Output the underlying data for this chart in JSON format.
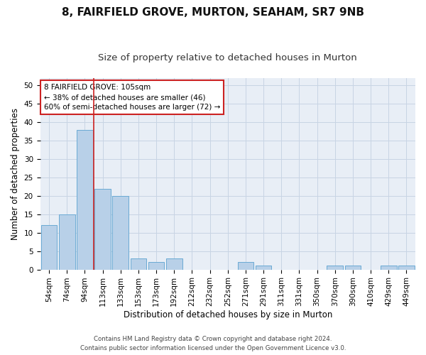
{
  "title": "8, FAIRFIELD GROVE, MURTON, SEAHAM, SR7 9NB",
  "subtitle": "Size of property relative to detached houses in Murton",
  "xlabel": "Distribution of detached houses by size in Murton",
  "ylabel": "Number of detached properties",
  "footer_line1": "Contains HM Land Registry data © Crown copyright and database right 2024.",
  "footer_line2": "Contains public sector information licensed under the Open Government Licence v3.0.",
  "bar_labels": [
    "54sqm",
    "74sqm",
    "94sqm",
    "113sqm",
    "133sqm",
    "153sqm",
    "173sqm",
    "192sqm",
    "212sqm",
    "232sqm",
    "252sqm",
    "271sqm",
    "291sqm",
    "311sqm",
    "331sqm",
    "350sqm",
    "370sqm",
    "390sqm",
    "410sqm",
    "429sqm",
    "449sqm"
  ],
  "bar_values": [
    12,
    15,
    38,
    22,
    20,
    3,
    2,
    3,
    0,
    0,
    0,
    2,
    1,
    0,
    0,
    0,
    1,
    1,
    0,
    1,
    1
  ],
  "bar_color": "#b8d0e8",
  "bar_edge_color": "#6aaad4",
  "grid_color": "#c8d4e4",
  "background_color": "#e8eef6",
  "annotation_line1": "8 FAIRFIELD GROVE: 105sqm",
  "annotation_line2": "← 38% of detached houses are smaller (46)",
  "annotation_line3": "60% of semi-detached houses are larger (72) →",
  "annotation_box_color": "#ffffff",
  "annotation_box_edge_color": "#cc2222",
  "red_line_x": 2.5,
  "ylim": [
    0,
    52
  ],
  "yticks": [
    0,
    5,
    10,
    15,
    20,
    25,
    30,
    35,
    40,
    45,
    50
  ],
  "title_fontsize": 11,
  "subtitle_fontsize": 9.5,
  "xlabel_fontsize": 8.5,
  "ylabel_fontsize": 8.5,
  "tick_fontsize": 7.5,
  "annotation_fontsize": 7.5
}
